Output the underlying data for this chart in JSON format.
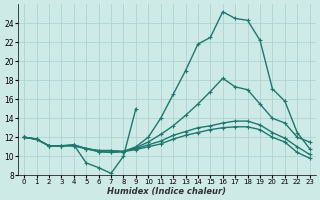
{
  "xlabel": "Humidex (Indice chaleur)",
  "bg_color": "#ceeae6",
  "grid_color": "#aacfcb",
  "line_color": "#1a7a6e",
  "ylim": [
    8,
    26
  ],
  "xlim": [
    -0.5,
    23.5
  ],
  "yticks": [
    8,
    10,
    12,
    14,
    16,
    18,
    20,
    22,
    24
  ],
  "xticks": [
    0,
    1,
    2,
    3,
    4,
    5,
    6,
    7,
    8,
    9,
    10,
    11,
    12,
    13,
    14,
    15,
    16,
    17,
    18,
    19,
    20,
    21,
    22,
    23
  ],
  "lines": [
    [
      12.0,
      11.8,
      11.1,
      11.1,
      11.1,
      10.8,
      10.6,
      10.6,
      10.5,
      10.7,
      11.0,
      11.3,
      11.8,
      12.2,
      12.5,
      12.8,
      13.0,
      13.1,
      13.1,
      12.8,
      12.0,
      11.5,
      10.4,
      9.8
    ],
    [
      12.0,
      11.8,
      11.1,
      11.1,
      11.1,
      10.8,
      10.6,
      10.6,
      10.5,
      10.8,
      11.2,
      11.6,
      12.2,
      12.6,
      13.0,
      13.2,
      13.5,
      13.7,
      13.7,
      13.3,
      12.5,
      11.9,
      11.0,
      10.2
    ],
    [
      12.0,
      11.8,
      11.1,
      11.1,
      11.2,
      10.8,
      10.5,
      10.4,
      10.5,
      10.9,
      11.5,
      12.3,
      13.2,
      14.3,
      15.5,
      16.8,
      18.2,
      17.3,
      17.0,
      15.5,
      14.0,
      13.5,
      12.0,
      11.5
    ],
    [
      12.0,
      11.8,
      11.1,
      11.1,
      11.2,
      10.8,
      10.5,
      10.4,
      10.5,
      11.0,
      12.0,
      14.0,
      16.5,
      19.0,
      21.8,
      22.5,
      25.2,
      24.5,
      24.3,
      22.2,
      17.1,
      15.8,
      12.5,
      10.8
    ],
    [
      12.0,
      11.8,
      null,
      null,
      11.2,
      9.3,
      8.8,
      8.2,
      10.0,
      15.0,
      null,
      null,
      null,
      null,
      null,
      null,
      null,
      null,
      null,
      null,
      null,
      null,
      null,
      null
    ]
  ]
}
